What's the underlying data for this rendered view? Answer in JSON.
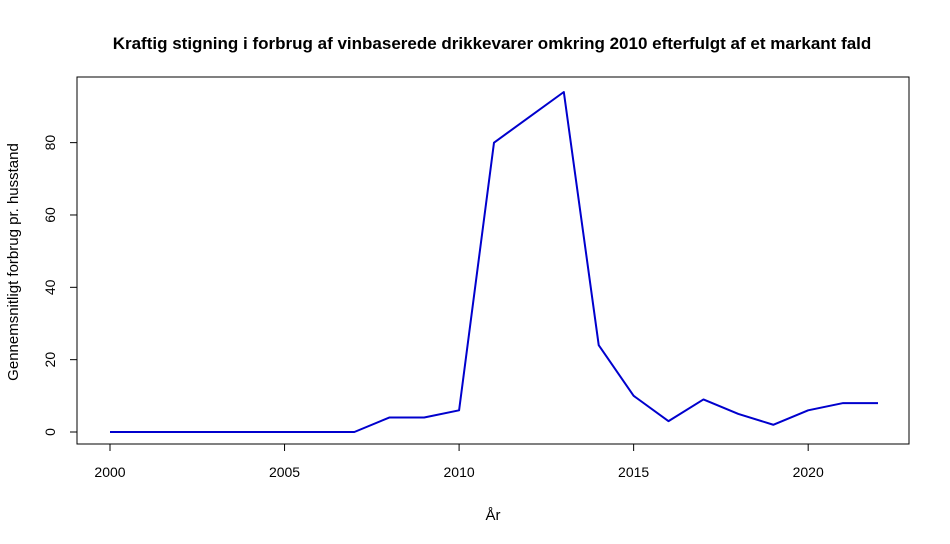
{
  "chart_data": {
    "type": "line",
    "title": "Kraftig stigning i forbrug af vinbaserede drikkevarer omkring 2010 efterfulgt af et markant fald",
    "xlabel": "År",
    "ylabel": "Gennemsnitligt forbrug pr. husstand",
    "x": [
      2000,
      2001,
      2002,
      2003,
      2004,
      2005,
      2006,
      2007,
      2008,
      2009,
      2010,
      2011,
      2012,
      2013,
      2014,
      2015,
      2016,
      2017,
      2018,
      2019,
      2020,
      2021,
      2022
    ],
    "series": [
      {
        "values": [
          0,
          0,
          0,
          0,
          0,
          0,
          0,
          0,
          4,
          4,
          6,
          80,
          87,
          94,
          24,
          10,
          3,
          9,
          5,
          2,
          6,
          8,
          8
        ],
        "color": "#0000CD"
      }
    ],
    "xlim": [
      2000,
      2022
    ],
    "ylim": [
      0,
      94
    ],
    "xticks": [
      2000,
      2005,
      2010,
      2015,
      2020
    ],
    "yticks": [
      0,
      20,
      40,
      60,
      80
    ],
    "grid": false,
    "legend": "none"
  }
}
